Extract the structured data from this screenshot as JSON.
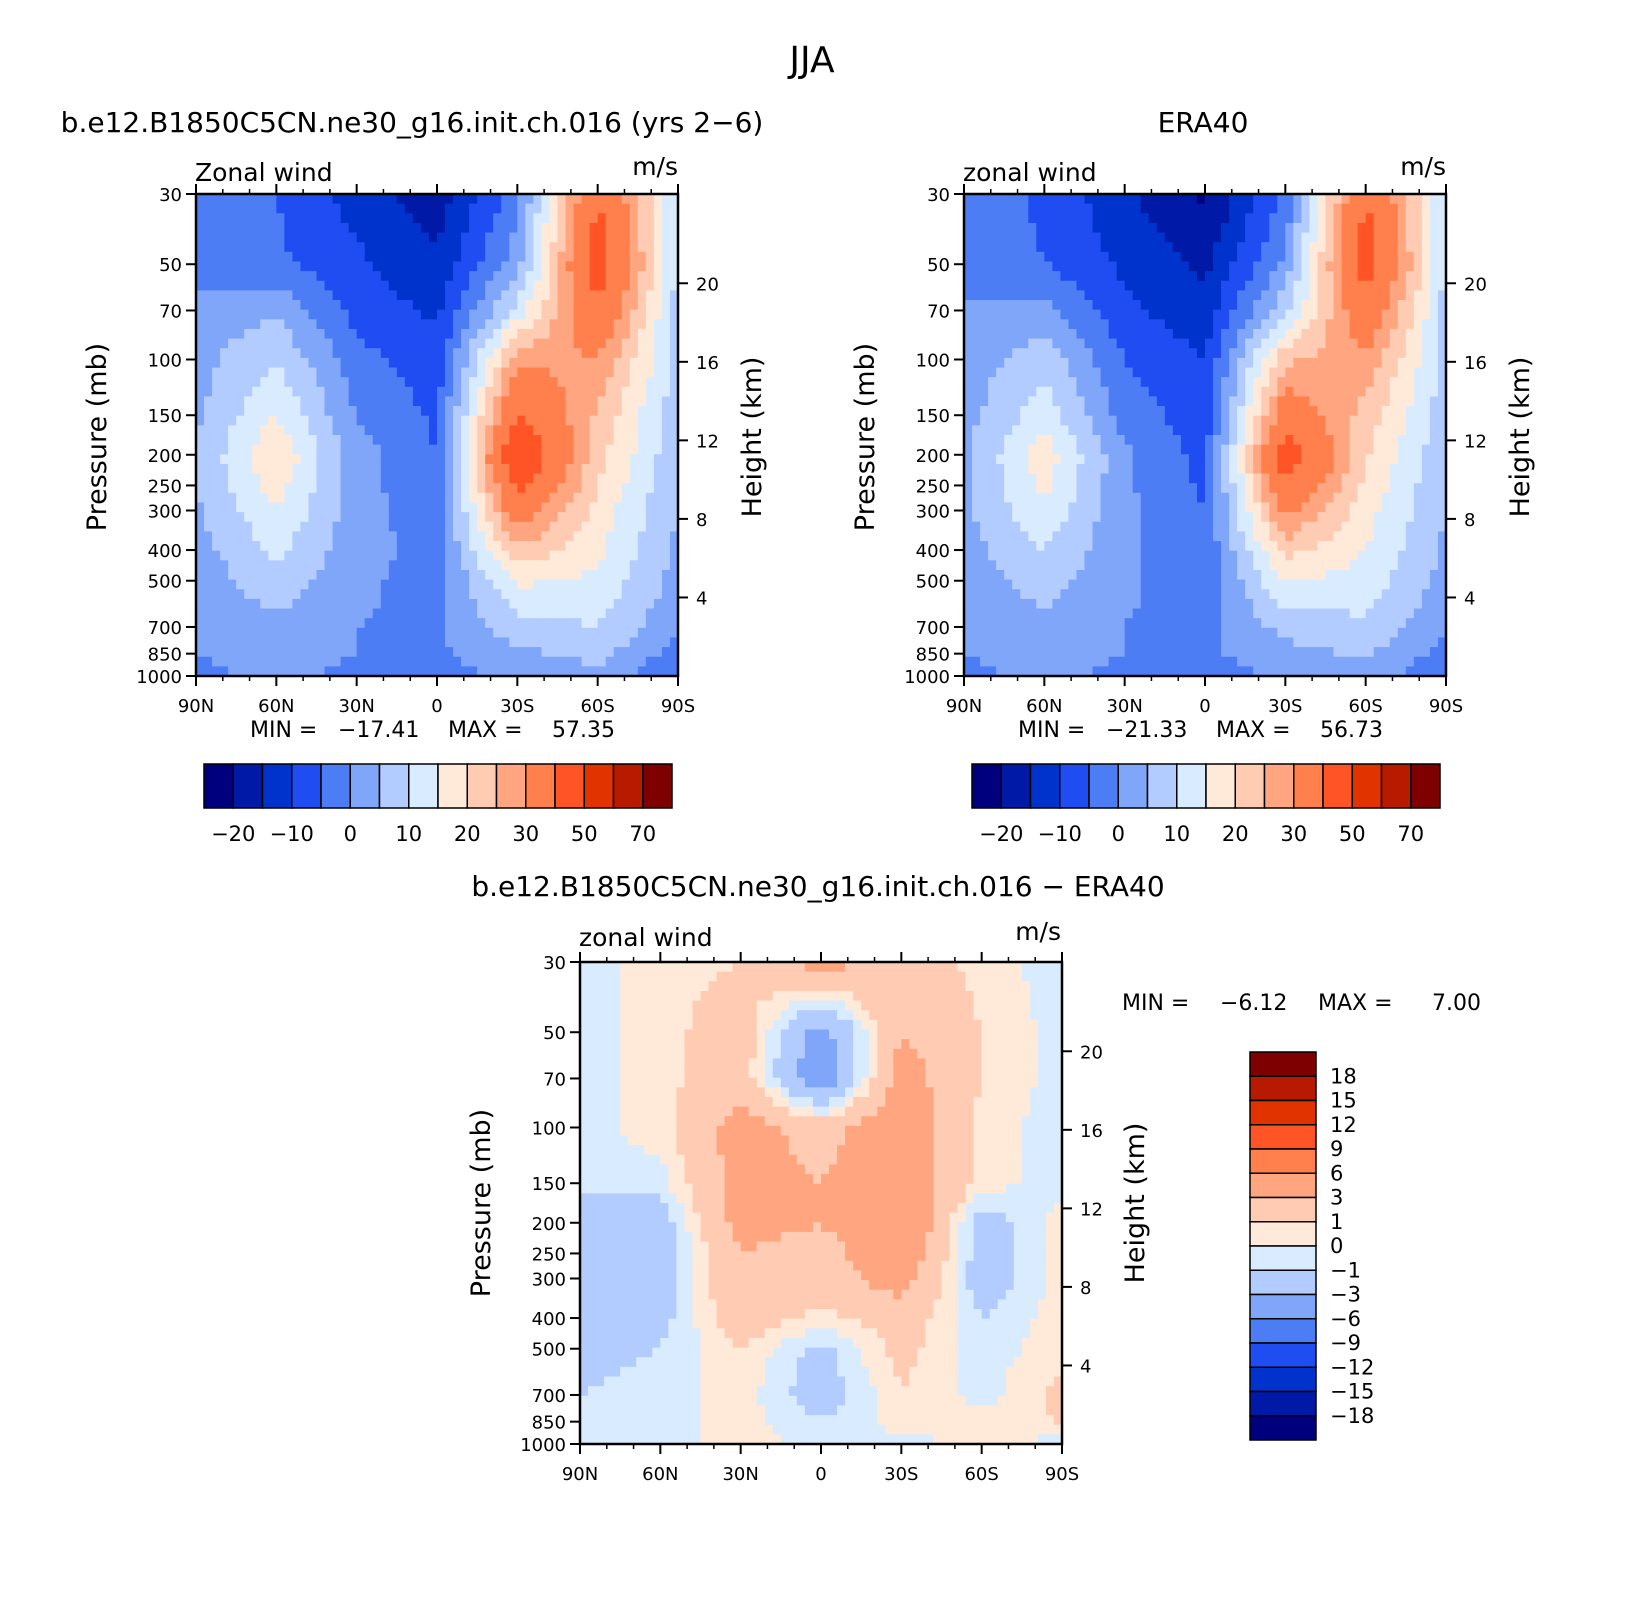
{
  "figure": {
    "title": "JJA"
  },
  "colors": {
    "abs_scale": [
      "#00007f",
      "#0019a6",
      "#0033cc",
      "#1f4df2",
      "#4d7df5",
      "#80a6fa",
      "#b3ccff",
      "#d9ebff",
      "#ffead9",
      "#ffccb3",
      "#ffa680",
      "#ff7f4d",
      "#ff5526",
      "#e03300",
      "#b81a00",
      "#7f0000"
    ],
    "diff_scale": [
      "#00007f",
      "#0019a6",
      "#0033cc",
      "#1f4df2",
      "#4d7df5",
      "#80a6fa",
      "#b3ccff",
      "#d9ebff",
      "#ffead9",
      "#ffccb3",
      "#ffa680",
      "#ff7f4d",
      "#ff5526",
      "#e03300",
      "#b81a00",
      "#7f0000"
    ]
  },
  "panels": {
    "model": {
      "title": "b.e12.B1850C5CN.ne30_g16.init.ch.016 (yrs 2−6)",
      "left_label": "Zonal wind",
      "right_label": "m/s",
      "stats": {
        "min_label": "MIN =",
        "min": "−17.41",
        "max_label": "MAX =",
        "max": "57.35"
      }
    },
    "obs": {
      "title": "ERA40",
      "left_label": "zonal wind",
      "right_label": "m/s",
      "stats": {
        "min_label": "MIN =",
        "min": "−21.33",
        "max_label": "MAX =",
        "max": "56.73"
      }
    },
    "diff": {
      "title": "b.e12.B1850C5CN.ne30_g16.init.ch.016 − ERA40",
      "left_label": "zonal wind",
      "right_label": "m/s",
      "stats": {
        "min_label": "MIN =",
        "min": "−6.12",
        "max_label": "MAX =",
        "max": "7.00"
      }
    }
  },
  "axes": {
    "ylabel": "Pressure (mb)",
    "y2label": "Height (km)",
    "pressure_ticks": [
      "30",
      "50",
      "70",
      "100",
      "150",
      "200",
      "250",
      "300",
      "400",
      "500",
      "700",
      "850",
      "1000"
    ],
    "height_ticks": [
      "20",
      "16",
      "12",
      "8",
      "4"
    ],
    "lat_ticks": [
      "90N",
      "60N",
      "30N",
      "0",
      "30S",
      "60S",
      "90S"
    ]
  },
  "colorbars": {
    "abs_labels": [
      "−20",
      "−10",
      "0",
      "10",
      "20",
      "30",
      "50",
      "70"
    ],
    "diff_labels": [
      "18",
      "15",
      "12",
      "9",
      "6",
      "3",
      "1",
      "0",
      "−1",
      "−3",
      "−6",
      "−9",
      "−12",
      "−15",
      "−18"
    ]
  },
  "chart_data": [
    {
      "type": "heatmap",
      "panel": "model",
      "title": "b.e12.B1850C5CN.ne30_g16.init.ch.016 (yrs 2−6)",
      "variable": "Zonal wind",
      "units": "m/s",
      "x": [
        90,
        60,
        30,
        0,
        -30,
        -60,
        -90
      ],
      "y": [
        30,
        50,
        70,
        100,
        150,
        200,
        250,
        300,
        400,
        500,
        700,
        850,
        1000
      ],
      "contour_levels": [
        -25,
        -20,
        -15,
        -10,
        -5,
        0,
        5,
        10,
        15,
        20,
        25,
        30,
        40,
        50,
        60,
        70
      ],
      "values": [
        [
          -2,
          -5,
          -12,
          -18,
          -2,
          40,
          10
        ],
        [
          -2,
          -4,
          -9,
          -14,
          3,
          45,
          9
        ],
        [
          2,
          4,
          -7,
          -11,
          12,
          38,
          8
        ],
        [
          3,
          10,
          -3,
          -8,
          28,
          30,
          8
        ],
        [
          4,
          15,
          0,
          -6,
          40,
          24,
          7
        ],
        [
          5,
          20,
          2,
          -5,
          50,
          22,
          6
        ],
        [
          5,
          17,
          2,
          -4,
          42,
          20,
          5
        ],
        [
          4,
          15,
          2,
          -3,
          35,
          18,
          5
        ],
        [
          3,
          11,
          2,
          -2,
          24,
          16,
          4
        ],
        [
          2,
          8,
          1,
          -2,
          16,
          14,
          3
        ],
        [
          1,
          4,
          0,
          -1,
          8,
          10,
          1
        ],
        [
          0,
          2,
          0,
          -1,
          4,
          7,
          -2
        ],
        [
          -1,
          1,
          -1,
          -2,
          1,
          3,
          -5
        ]
      ]
    },
    {
      "type": "heatmap",
      "panel": "obs",
      "title": "ERA40",
      "variable": "zonal wind",
      "units": "m/s",
      "x": [
        90,
        60,
        30,
        0,
        -30,
        -60,
        -90
      ],
      "y": [
        30,
        50,
        70,
        100,
        150,
        200,
        250,
        300,
        400,
        500,
        700,
        850,
        1000
      ],
      "contour_levels": [
        -25,
        -20,
        -15,
        -10,
        -5,
        0,
        5,
        10,
        15,
        20,
        25,
        30,
        40,
        50,
        60,
        70
      ],
      "values": [
        [
          -2,
          -6,
          -14,
          -21,
          -4,
          40,
          10
        ],
        [
          -2,
          -5,
          -11,
          -16,
          1,
          45,
          9
        ],
        [
          1,
          2,
          -9,
          -13,
          9,
          37,
          8
        ],
        [
          2,
          8,
          -5,
          -10,
          24,
          29,
          8
        ],
        [
          3,
          13,
          -2,
          -8,
          35,
          23,
          7
        ],
        [
          4,
          18,
          1,
          -7,
          46,
          21,
          6
        ],
        [
          4,
          16,
          1,
          -6,
          39,
          19,
          5
        ],
        [
          4,
          14,
          1,
          -5,
          32,
          17,
          5
        ],
        [
          3,
          10,
          1,
          -4,
          22,
          15,
          4
        ],
        [
          2,
          7,
          1,
          -3,
          15,
          13,
          3
        ],
        [
          1,
          4,
          0,
          -2,
          7,
          9,
          1
        ],
        [
          0,
          2,
          0,
          -1,
          3,
          6,
          -2
        ],
        [
          -1,
          1,
          -1,
          -2,
          1,
          3,
          -5
        ]
      ]
    },
    {
      "type": "heatmap",
      "panel": "diff",
      "title": "b.e12.B1850C5CN.ne30_g16.init.ch.016 − ERA40",
      "variable": "zonal wind",
      "units": "m/s",
      "x": [
        90,
        60,
        30,
        0,
        -30,
        -60,
        -90
      ],
      "y": [
        30,
        50,
        70,
        100,
        150,
        200,
        250,
        300,
        400,
        500,
        700,
        850,
        1000
      ],
      "contour_levels": [
        -21,
        -18,
        -15,
        -12,
        -9,
        -6,
        -3,
        -1,
        0,
        1,
        3,
        6,
        9,
        12,
        15,
        18
      ],
      "values": [
        [
          -0.5,
          0.5,
          1,
          4,
          2,
          0.5,
          -0.5
        ],
        [
          -0.5,
          0.5,
          2,
          -4,
          3,
          1,
          -0.5
        ],
        [
          -0.5,
          0.5,
          2,
          -5,
          4,
          1,
          -0.5
        ],
        [
          -0.5,
          0.5,
          4,
          2,
          5,
          0.5,
          -0.5
        ],
        [
          -0.5,
          -0.5,
          4,
          3,
          5,
          0.5,
          -0.5
        ],
        [
          -2,
          -2,
          4,
          3,
          6,
          -2,
          0.5
        ],
        [
          -2,
          -2,
          3,
          2,
          5,
          -2,
          0.5
        ],
        [
          -2,
          -2,
          3,
          2,
          4,
          -2,
          0.5
        ],
        [
          -2,
          -1.5,
          2,
          0.5,
          2,
          -1,
          0.5
        ],
        [
          -1.5,
          -1,
          1,
          -1.5,
          1.5,
          -0.5,
          0.5
        ],
        [
          -1,
          -0.5,
          0.5,
          -2,
          1,
          -0.5,
          1.5
        ],
        [
          -0.5,
          -0.5,
          0.5,
          -1,
          0.5,
          0.5,
          1
        ],
        [
          -0.5,
          -0.5,
          0.5,
          -0.5,
          -0.5,
          0.5,
          -0.5
        ]
      ]
    }
  ]
}
